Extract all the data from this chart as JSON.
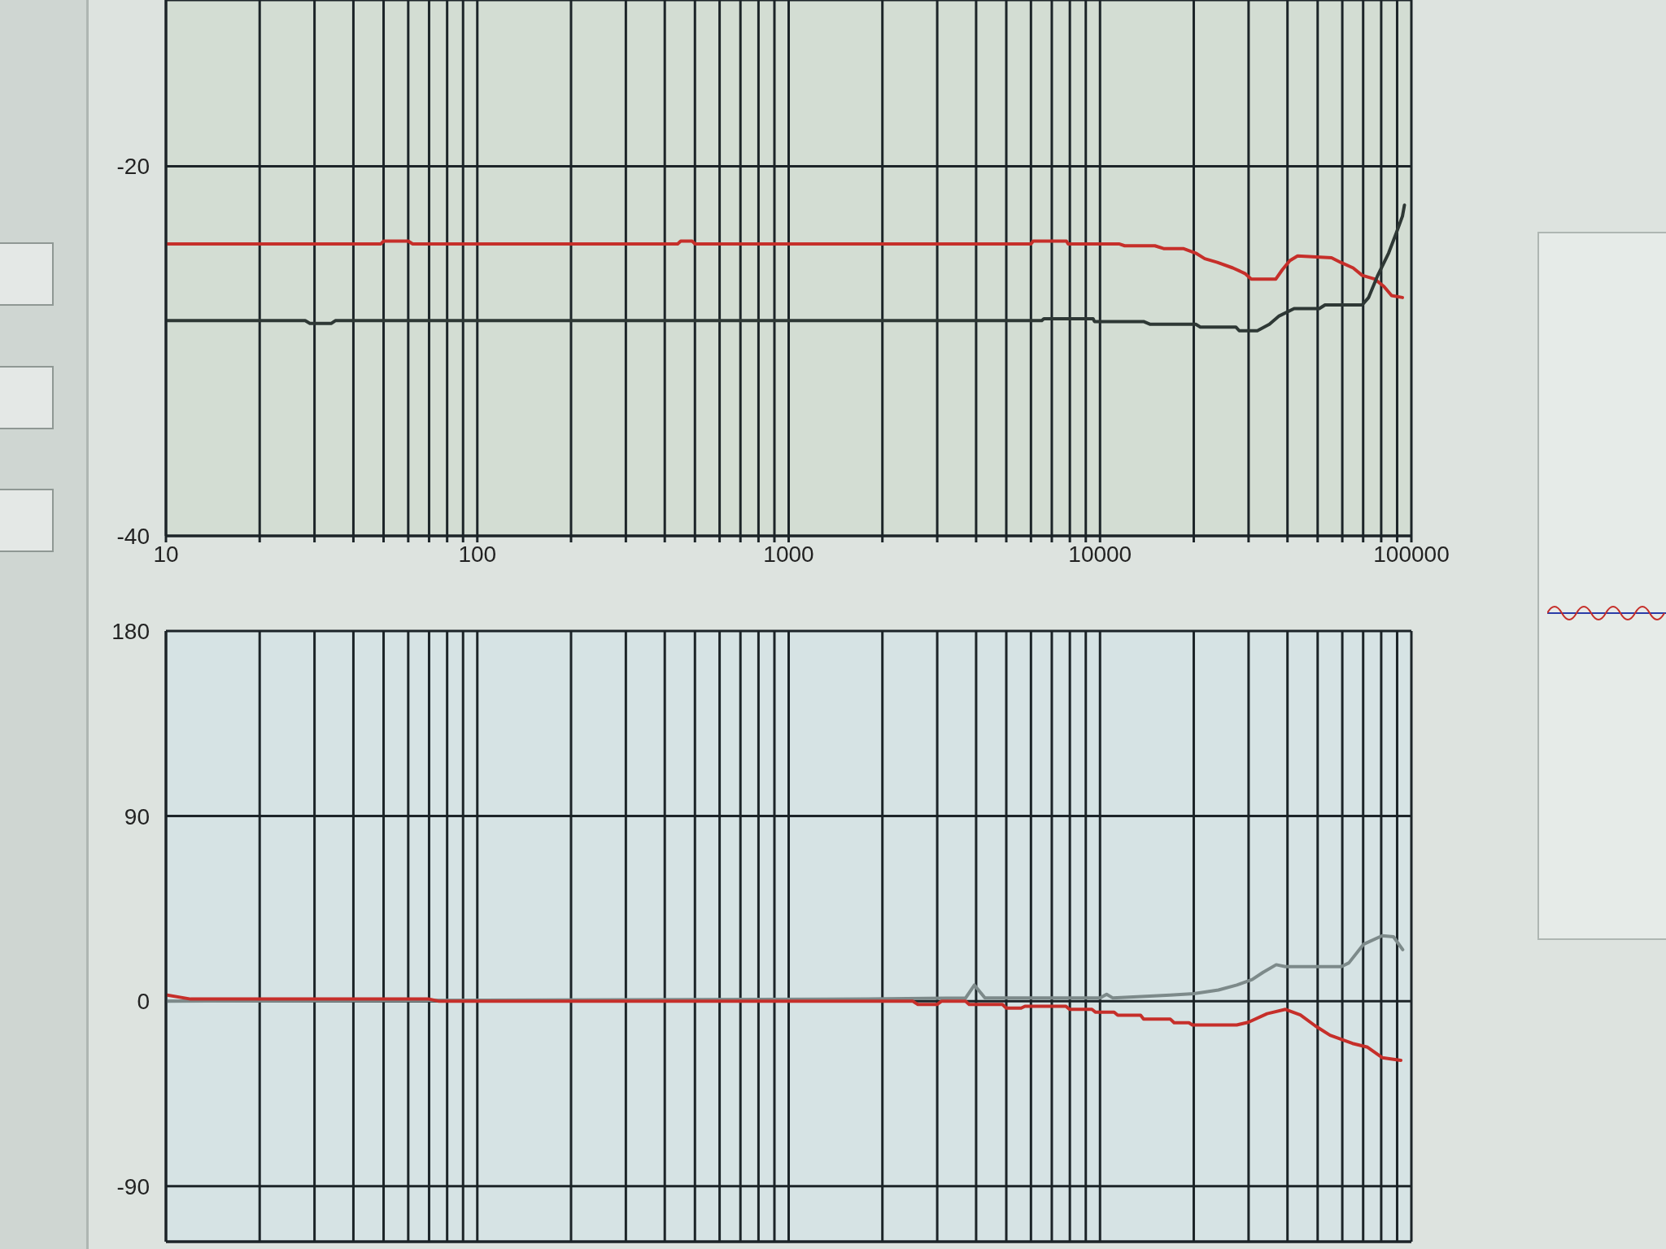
{
  "chart_data": [
    {
      "type": "line",
      "log": "x",
      "grid": true,
      "xlim": [
        10,
        100000
      ],
      "ylim": [
        -40,
        -11
      ],
      "yticks": [
        -40,
        -20
      ],
      "xticks": [
        10,
        {
          "value": 20,
          "label": null
        },
        {
          "value": 30,
          "label": null
        },
        {
          "value": 40,
          "label": null
        },
        {
          "value": 50,
          "label": null
        },
        {
          "value": 60,
          "label": null
        },
        {
          "value": 70,
          "label": null
        },
        {
          "value": 80,
          "label": null
        },
        {
          "value": 90,
          "label": null
        },
        100,
        {
          "value": 200,
          "label": null
        },
        {
          "value": 300,
          "label": null
        },
        {
          "value": 400,
          "label": null
        },
        {
          "value": 500,
          "label": null
        },
        {
          "value": 600,
          "label": null
        },
        {
          "value": 700,
          "label": null
        },
        {
          "value": 800,
          "label": null
        },
        {
          "value": 900,
          "label": null
        },
        1000,
        {
          "value": 2000,
          "label": null
        },
        {
          "value": 3000,
          "label": null
        },
        {
          "value": 4000,
          "label": null
        },
        {
          "value": 5000,
          "label": null
        },
        {
          "value": 6000,
          "label": null
        },
        {
          "value": 7000,
          "label": null
        },
        {
          "value": 8000,
          "label": null
        },
        {
          "value": 9000,
          "label": null
        },
        10000,
        {
          "value": 20000,
          "label": null
        },
        {
          "value": 30000,
          "label": null
        },
        {
          "value": 40000,
          "label": null
        },
        {
          "value": 50000,
          "label": null
        },
        {
          "value": 60000,
          "label": null
        },
        {
          "value": 70000,
          "label": null
        },
        {
          "value": 80000,
          "label": null
        },
        {
          "value": 90000,
          "label": null
        },
        100000
      ],
      "series": [
        {
          "color": "#c62f2a",
          "x": [
            10,
            49,
            50,
            60,
            62,
            440,
            450,
            490,
            500,
            6000,
            6100,
            7800,
            7900,
            11500,
            12000,
            15000,
            16000,
            18500,
            20300,
            21700,
            23800,
            26700,
            29200,
            30600,
            36700,
            38500,
            40700,
            43100,
            55400,
            59300,
            65000,
            69500,
            76200,
            81600,
            86400,
            93600
          ],
          "values": [
            -24.2,
            -24.2,
            -24.05,
            -24.05,
            -24.2,
            -24.2,
            -24.05,
            -24.05,
            -24.2,
            -24.2,
            -24.05,
            -24.05,
            -24.2,
            -24.2,
            -24.3,
            -24.3,
            -24.45,
            -24.45,
            -24.7,
            -25.0,
            -25.2,
            -25.5,
            -25.8,
            -26.1,
            -26.1,
            -25.6,
            -25.1,
            -24.85,
            -24.95,
            -25.2,
            -25.5,
            -25.9,
            -26.1,
            -26.5,
            -27.0,
            -27.1
          ]
        },
        {
          "color": "#2e3835",
          "x": [
            10,
            28,
            29,
            34,
            35,
            6500,
            6600,
            9500,
            9600,
            13800,
            14500,
            20300,
            21000,
            27300,
            28000,
            32000,
            35000,
            37600,
            42000,
            50600,
            52800,
            69500,
            72900,
            78000,
            84500,
            89500,
            93600,
            95000
          ],
          "values": [
            -28.35,
            -28.35,
            -28.5,
            -28.5,
            -28.35,
            -28.35,
            -28.25,
            -28.25,
            -28.4,
            -28.4,
            -28.55,
            -28.55,
            -28.7,
            -28.7,
            -28.9,
            -28.9,
            -28.55,
            -28.1,
            -27.7,
            -27.7,
            -27.5,
            -27.5,
            -27.1,
            -25.9,
            -24.7,
            -23.6,
            -22.7,
            -22.1
          ]
        }
      ]
    },
    {
      "type": "line",
      "log": "x",
      "grid": true,
      "tick_labels": "y",
      "xlim": [
        10,
        100000
      ],
      "ylim": [
        -117,
        180
      ],
      "yticks": [
        -90,
        0,
        90,
        180
      ],
      "xticks": [
        10,
        {
          "value": 20,
          "label": null
        },
        {
          "value": 30,
          "label": null
        },
        {
          "value": 40,
          "label": null
        },
        {
          "value": 50,
          "label": null
        },
        {
          "value": 60,
          "label": null
        },
        {
          "value": 70,
          "label": null
        },
        {
          "value": 80,
          "label": null
        },
        {
          "value": 90,
          "label": null
        },
        100,
        {
          "value": 200,
          "label": null
        },
        {
          "value": 300,
          "label": null
        },
        {
          "value": 400,
          "label": null
        },
        {
          "value": 500,
          "label": null
        },
        {
          "value": 600,
          "label": null
        },
        {
          "value": 700,
          "label": null
        },
        {
          "value": 800,
          "label": null
        },
        {
          "value": 900,
          "label": null
        },
        1000,
        {
          "value": 2000,
          "label": null
        },
        {
          "value": 3000,
          "label": null
        },
        {
          "value": 4000,
          "label": null
        },
        {
          "value": 5000,
          "label": null
        },
        {
          "value": 6000,
          "label": null
        },
        {
          "value": 7000,
          "label": null
        },
        {
          "value": 8000,
          "label": null
        },
        {
          "value": 9000,
          "label": null
        },
        10000,
        {
          "value": 20000,
          "label": null
        },
        {
          "value": 30000,
          "label": null
        },
        {
          "value": 40000,
          "label": null
        },
        {
          "value": 50000,
          "label": null
        },
        {
          "value": 60000,
          "label": null
        },
        {
          "value": 70000,
          "label": null
        },
        {
          "value": 80000,
          "label": null
        },
        {
          "value": 90000,
          "label": null
        },
        100000
      ],
      "series": [
        {
          "color": "#7d8a8a",
          "x": [
            10,
            1800,
            3700,
            3950,
            4270,
            10000,
            10500,
            11000,
            16800,
            20000,
            24000,
            27500,
            30800,
            33400,
            36800,
            39400,
            59600,
            63000,
            70300,
            80600,
            87600,
            93800
          ],
          "values": [
            0,
            1,
            1.5,
            7.8,
            1.5,
            1.5,
            3.3,
            1.5,
            2.9,
            3.6,
            5.4,
            7.8,
            10.5,
            14,
            17.7,
            16.8,
            16.8,
            18.6,
            27.7,
            31.8,
            31.3,
            25
          ]
        },
        {
          "color": "#c62f2a",
          "x": [
            10,
            12,
            70,
            75,
            2500,
            2600,
            3000,
            3100,
            3700,
            3800,
            4860,
            5000,
            5580,
            5740,
            7770,
            7980,
            9420,
            9680,
            11100,
            11400,
            13500,
            13800,
            16800,
            17300,
            19300,
            19800,
            27500,
            29900,
            34400,
            39400,
            44000,
            49100,
            54800,
            64700,
            72300,
            80600,
            92500
          ],
          "values": [
            3,
            1,
            1,
            0,
            0,
            -1.6,
            -1.6,
            0,
            0,
            -1.6,
            -1.6,
            -3.4,
            -3.4,
            -2.5,
            -2.5,
            -4,
            -4,
            -5.4,
            -5.4,
            -6.9,
            -6.9,
            -8.7,
            -8.7,
            -10.5,
            -10.5,
            -11.6,
            -11.6,
            -10.3,
            -6.1,
            -4,
            -6.7,
            -12,
            -16.6,
            -20.6,
            -22.4,
            -27.5,
            -28.8
          ]
        }
      ]
    }
  ]
}
